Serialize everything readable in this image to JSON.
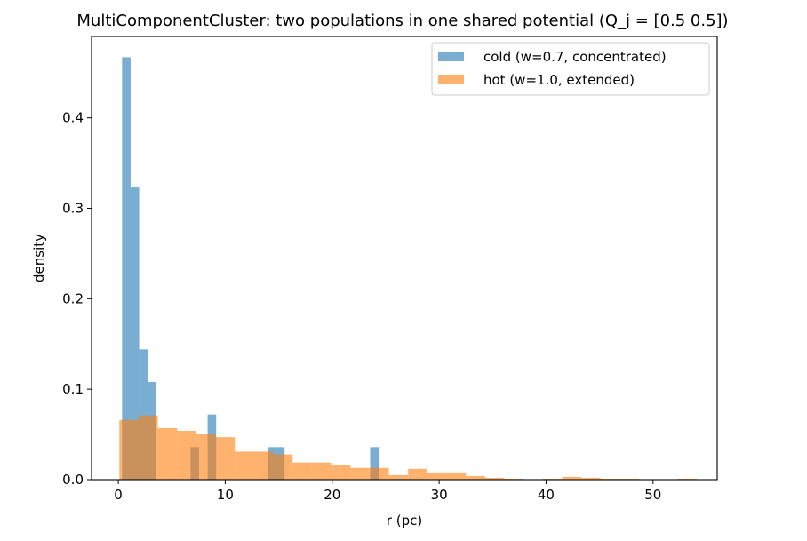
{
  "chart_data": {
    "type": "bar",
    "title": "MultiComponentCluster: two populations in one shared potential (Q_j = [0.5 0.5])",
    "xlabel": "r (pc)",
    "ylabel": "density",
    "xlim": [
      -2.5,
      56
    ],
    "ylim": [
      0,
      0.49
    ],
    "xticks": [
      0,
      10,
      20,
      30,
      40,
      50
    ],
    "yticks": [
      0.0,
      0.1,
      0.2,
      0.3,
      0.4
    ],
    "ytick_labels": [
      "0.0",
      "0.1",
      "0.2",
      "0.3",
      "0.4"
    ],
    "grid": false,
    "legend": "top-right",
    "series": [
      {
        "name": "cold (w=0.7, concentrated)",
        "color": "#1f77b4",
        "opacity": 0.6,
        "bins": [
          {
            "x0": 0.35,
            "x1": 1.15,
            "y": 0.467
          },
          {
            "x0": 1.15,
            "x1": 1.95,
            "y": 0.323
          },
          {
            "x0": 1.95,
            "x1": 2.75,
            "y": 0.144
          },
          {
            "x0": 2.75,
            "x1": 3.55,
            "y": 0.108
          },
          {
            "x0": 6.75,
            "x1": 7.55,
            "y": 0.036
          },
          {
            "x0": 8.35,
            "x1": 9.15,
            "y": 0.072
          },
          {
            "x0": 13.95,
            "x1": 14.75,
            "y": 0.036
          },
          {
            "x0": 14.75,
            "x1": 15.55,
            "y": 0.036
          },
          {
            "x0": 23.55,
            "x1": 24.35,
            "y": 0.036
          }
        ]
      },
      {
        "name": "hot (w=1.0, extended)",
        "color": "#ff7f0e",
        "opacity": 0.6,
        "bins": [
          {
            "x0": 0.1,
            "x1": 1.9,
            "y": 0.066
          },
          {
            "x0": 1.9,
            "x1": 3.7,
            "y": 0.071
          },
          {
            "x0": 3.7,
            "x1": 5.5,
            "y": 0.057
          },
          {
            "x0": 5.5,
            "x1": 7.3,
            "y": 0.054
          },
          {
            "x0": 7.3,
            "x1": 9.1,
            "y": 0.051
          },
          {
            "x0": 9.1,
            "x1": 10.9,
            "y": 0.047
          },
          {
            "x0": 10.9,
            "x1": 12.7,
            "y": 0.031
          },
          {
            "x0": 12.7,
            "x1": 14.5,
            "y": 0.031
          },
          {
            "x0": 14.5,
            "x1": 16.3,
            "y": 0.028
          },
          {
            "x0": 16.3,
            "x1": 18.1,
            "y": 0.019
          },
          {
            "x0": 18.1,
            "x1": 19.9,
            "y": 0.019
          },
          {
            "x0": 19.9,
            "x1": 21.7,
            "y": 0.016
          },
          {
            "x0": 21.7,
            "x1": 23.5,
            "y": 0.013
          },
          {
            "x0": 23.5,
            "x1": 25.3,
            "y": 0.013
          },
          {
            "x0": 25.3,
            "x1": 27.1,
            "y": 0.005
          },
          {
            "x0": 27.1,
            "x1": 28.9,
            "y": 0.012
          },
          {
            "x0": 28.9,
            "x1": 30.7,
            "y": 0.008
          },
          {
            "x0": 30.7,
            "x1": 32.5,
            "y": 0.008
          },
          {
            "x0": 32.5,
            "x1": 34.3,
            "y": 0.004
          },
          {
            "x0": 34.3,
            "x1": 36.1,
            "y": 0.002
          },
          {
            "x0": 36.1,
            "x1": 37.9,
            "y": 0.001
          },
          {
            "x0": 37.9,
            "x1": 39.7,
            "y": 0.0
          },
          {
            "x0": 39.7,
            "x1": 41.5,
            "y": 0.001
          },
          {
            "x0": 41.5,
            "x1": 43.3,
            "y": 0.003
          },
          {
            "x0": 43.3,
            "x1": 45.1,
            "y": 0.002
          },
          {
            "x0": 45.1,
            "x1": 46.9,
            "y": 0.001
          },
          {
            "x0": 46.9,
            "x1": 48.7,
            "y": 0.001
          },
          {
            "x0": 48.7,
            "x1": 50.5,
            "y": 0.0
          },
          {
            "x0": 50.5,
            "x1": 52.3,
            "y": 0.0
          },
          {
            "x0": 52.3,
            "x1": 54.1,
            "y": 0.001
          }
        ]
      }
    ]
  }
}
